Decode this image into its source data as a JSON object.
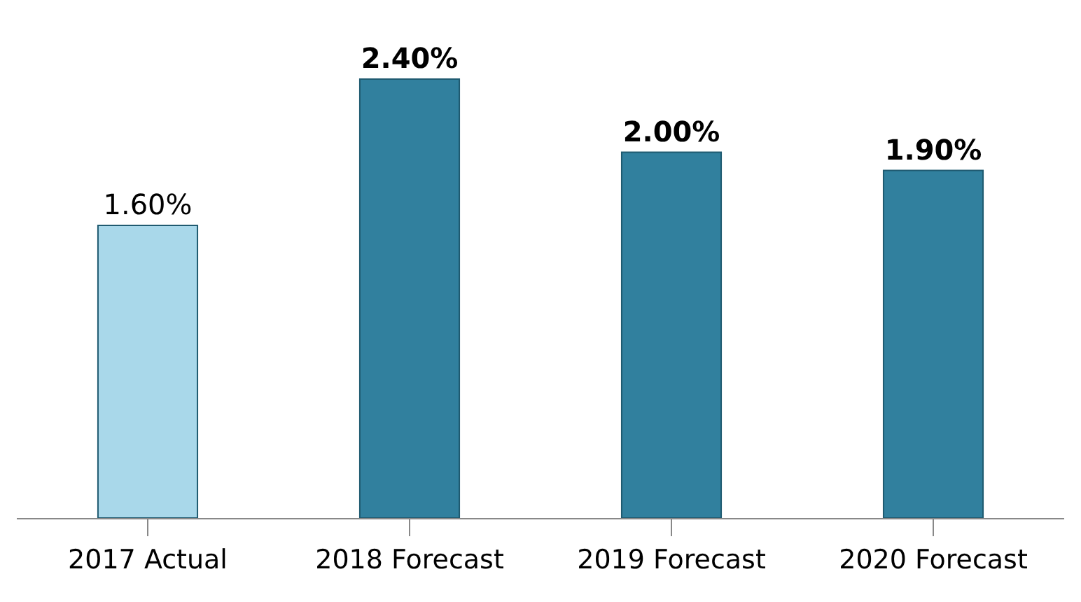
{
  "chart_data": {
    "type": "bar",
    "categories": [
      "2017 Actual",
      "2018 Forecast",
      "2019 Forecast",
      "2020 Forecast"
    ],
    "values": [
      1.6,
      2.4,
      2.0,
      1.9
    ],
    "colors": [
      "#a9d8ea",
      "#31809e",
      "#31809e",
      "#31809e"
    ],
    "value_labels": [
      "1.60%",
      "2.40%",
      "2.00%",
      "1.90%"
    ]
  }
}
